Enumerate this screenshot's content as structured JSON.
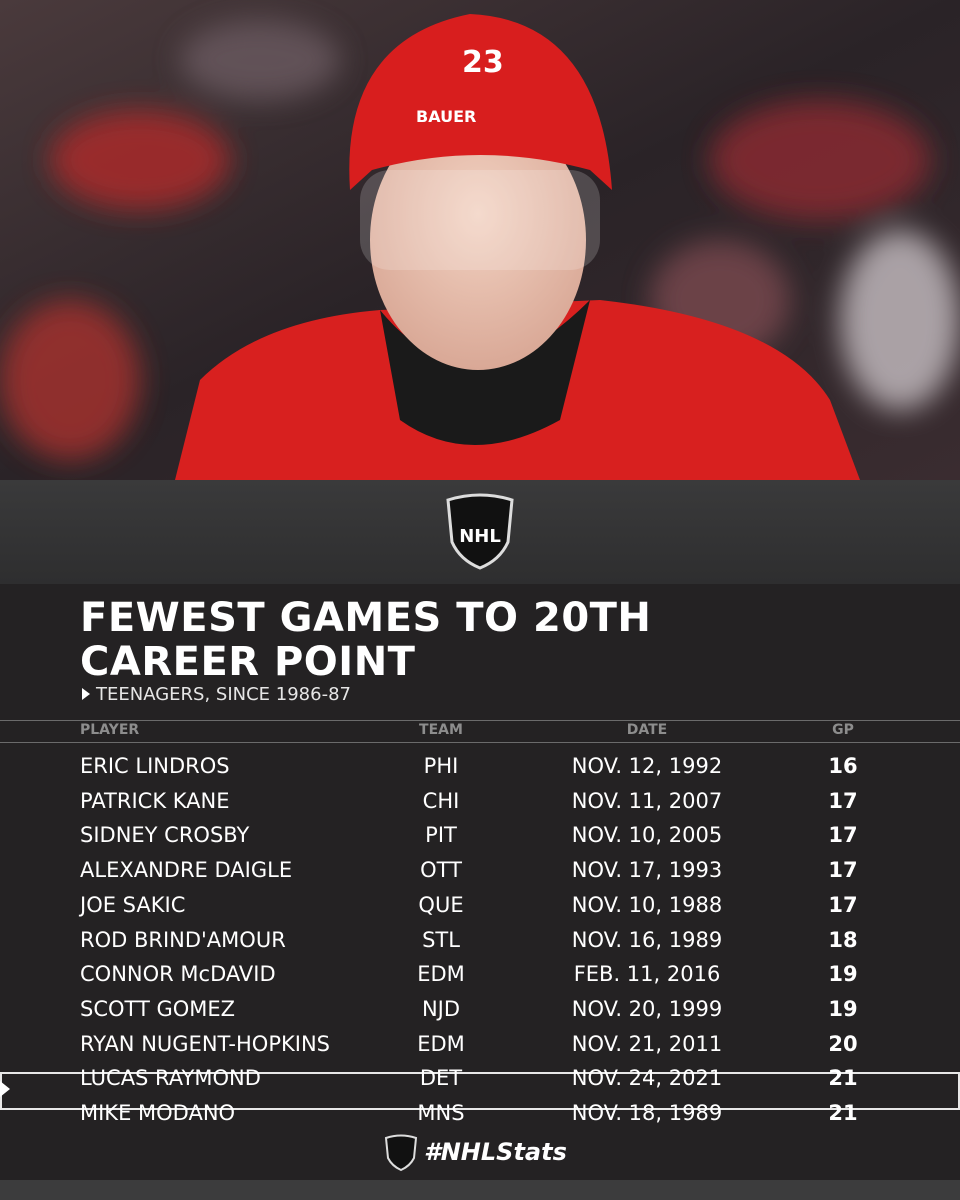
{
  "logo": "NHL",
  "header": {
    "title": "FEWEST GAMES TO 20TH CAREER POINT",
    "subtitle": "TEENAGERS, SINCE 1986-87"
  },
  "table": {
    "columns": [
      "PLAYER",
      "TEAM",
      "DATE",
      "GP"
    ],
    "rows": [
      [
        "ERIC LINDROS",
        "PHI",
        "NOV. 12, 1992",
        "16"
      ],
      [
        "PATRICK KANE",
        "CHI",
        "NOV. 11, 2007",
        "17"
      ],
      [
        "SIDNEY CROSBY",
        "PIT",
        "NOV. 10, 2005",
        "17"
      ],
      [
        "ALEXANDRE DAIGLE",
        "OTT",
        "NOV. 17, 1993",
        "17"
      ],
      [
        "JOE SAKIC",
        "QUE",
        "NOV. 10, 1988",
        "17"
      ],
      [
        "ROD BRIND'AMOUR",
        "STL",
        "NOV. 16, 1989",
        "18"
      ],
      [
        "CONNOR McDAVID",
        "EDM",
        "FEB. 11, 2016",
        "19"
      ],
      [
        "SCOTT GOMEZ",
        "NJD",
        "NOV. 20, 1999",
        "19"
      ],
      [
        "RYAN NUGENT-HOPKINS",
        "EDM",
        "NOV. 21, 2011",
        "20"
      ],
      [
        "LUCAS RAYMOND",
        "DET",
        "NOV. 24, 2021",
        "21"
      ],
      [
        "MIKE MODANO",
        "MNS",
        "NOV. 18, 1989",
        "21"
      ]
    ],
    "highlight_row": 9
  },
  "footer": {
    "hashtag": "#NHLStats"
  }
}
